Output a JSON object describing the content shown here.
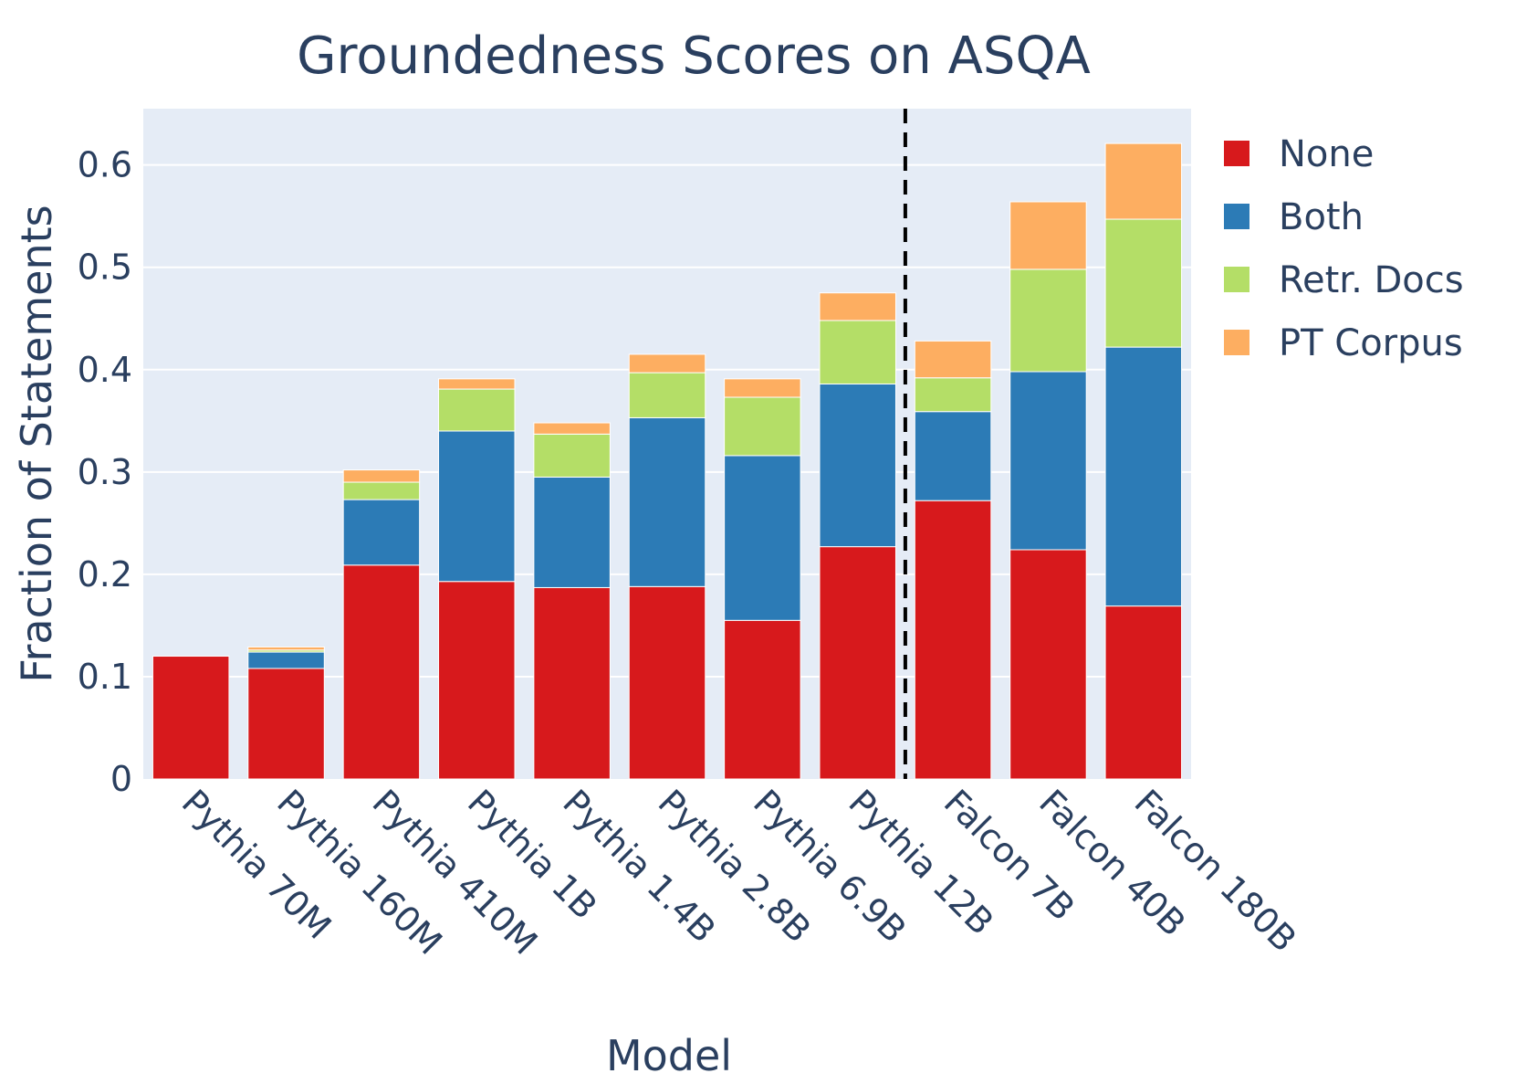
{
  "chart_data": {
    "type": "bar",
    "barmode": "stack",
    "title": "Groundedness Scores on ASQA",
    "xlabel": "Model",
    "ylabel": "Fraction of Statements",
    "ylim": [
      0,
      0.655
    ],
    "yticks": [
      0,
      0.1,
      0.2,
      0.3,
      0.4,
      0.5,
      0.6
    ],
    "ytick_labels": [
      "0",
      "0.1",
      "0.2",
      "0.3",
      "0.4",
      "0.5",
      "0.6"
    ],
    "grid": true,
    "legend_position": "top-right",
    "divider": "dashed vertical line between Pythia 12B and Falcon 7B",
    "categories": [
      "Pythia 70M",
      "Pythia 160M",
      "Pythia 410M",
      "Pythia 1B",
      "Pythia 1.4B",
      "Pythia 2.8B",
      "Pythia 6.9B",
      "Pythia 12B",
      "Falcon 7B",
      "Falcon 40B",
      "Falcon 180B"
    ],
    "series": [
      {
        "name": "None",
        "color": "#d7191c",
        "values": [
          0.12,
          0.108,
          0.209,
          0.193,
          0.187,
          0.188,
          0.155,
          0.227,
          0.272,
          0.224,
          0.169
        ]
      },
      {
        "name": "Both",
        "color": "#2c7bb6",
        "values": [
          0.0,
          0.016,
          0.064,
          0.147,
          0.108,
          0.165,
          0.161,
          0.159,
          0.087,
          0.174,
          0.253
        ]
      },
      {
        "name": "Retr. Docs",
        "color": "#b4de67",
        "values": [
          0.0,
          0.002,
          0.017,
          0.041,
          0.042,
          0.044,
          0.057,
          0.062,
          0.033,
          0.1,
          0.125
        ]
      },
      {
        "name": "PT Corpus",
        "color": "#fdae61",
        "values": [
          0.0,
          0.003,
          0.012,
          0.01,
          0.011,
          0.018,
          0.018,
          0.027,
          0.036,
          0.066,
          0.074
        ]
      }
    ]
  }
}
